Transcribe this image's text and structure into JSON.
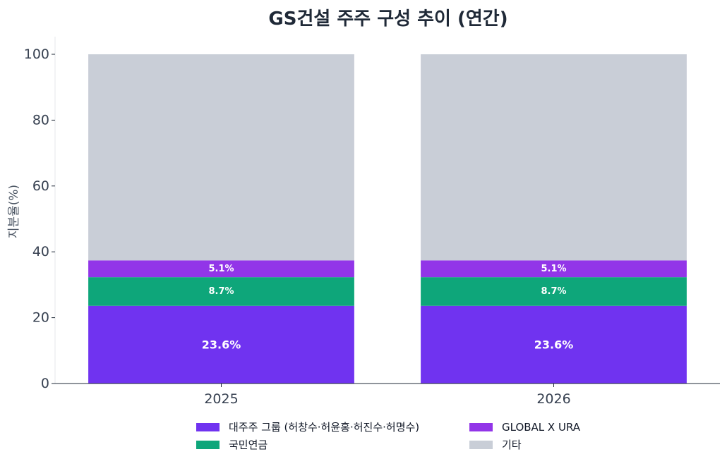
{
  "chart_data": {
    "type": "bar",
    "stacked": true,
    "title": "GS건설 주주 구성 추이 (연간)",
    "xlabel": "",
    "ylabel": "지분율(%)",
    "ylim": [
      0,
      100
    ],
    "yticks": [
      "0",
      "20",
      "40",
      "60",
      "80",
      "100"
    ],
    "categories": [
      "2025",
      "2026"
    ],
    "series": [
      {
        "name": "대주주 그룹 (허창수·허윤홍·허진수·허명수)",
        "values": [
          23.6,
          23.6
        ],
        "labels": [
          "23.6%",
          "23.6%"
        ],
        "color": "#7033f0"
      },
      {
        "name": "국민연금",
        "values": [
          8.7,
          8.7
        ],
        "labels": [
          "8.7%",
          "8.7%"
        ],
        "color": "#0ea67a"
      },
      {
        "name": "GLOBAL X URA",
        "values": [
          5.1,
          5.1
        ],
        "labels": [
          "5.1%",
          "5.1%"
        ],
        "color": "#9235e8"
      },
      {
        "name": "기타",
        "values": [
          62.6,
          62.6
        ],
        "labels": [
          "",
          ""
        ],
        "color": "#c9ced7"
      }
    ],
    "grid": false,
    "legend_position": "bottom-center"
  }
}
